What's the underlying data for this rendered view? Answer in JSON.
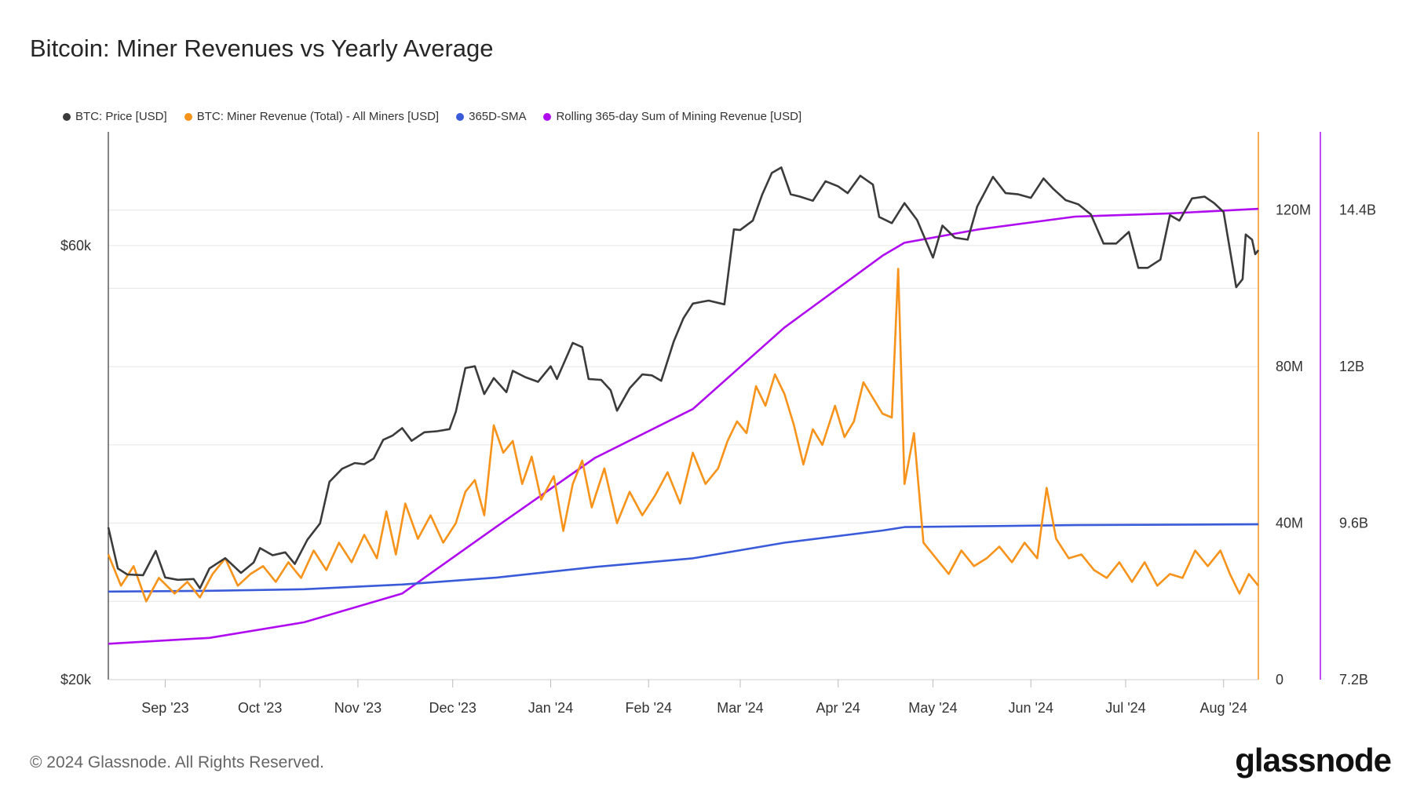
{
  "chart_data": {
    "type": "line",
    "title": "Bitcoin: Miner Revenues vs Yearly Average",
    "x_labels": [
      "Sep '23",
      "Oct '23",
      "Nov '23",
      "Dec '23",
      "Jan '24",
      "Feb '24",
      "Mar '24",
      "Apr '24",
      "May '24",
      "Jun '24",
      "Jul '24",
      "Aug '24"
    ],
    "x_label_dates": [
      "2023-09-01",
      "2023-10-01",
      "2023-11-01",
      "2023-12-01",
      "2024-01-01",
      "2024-02-01",
      "2024-03-01",
      "2024-04-01",
      "2024-05-01",
      "2024-06-01",
      "2024-07-01",
      "2024-08-01"
    ],
    "x_range": [
      "2023-08-14",
      "2024-08-12"
    ],
    "left_axis": {
      "ticks": [
        "$20k",
        "$60k"
      ],
      "tick_values": [
        20000,
        60000
      ],
      "range": [
        20000,
        80000
      ],
      "scale": "log"
    },
    "right_axis": {
      "ticks": [
        "0",
        "40M",
        "80M",
        "120M"
      ],
      "tick_values": [
        0,
        40000000,
        80000000,
        120000000
      ],
      "range": [
        0,
        140000000
      ]
    },
    "far_right_axis": {
      "ticks": [
        "7.2B",
        "9.6B",
        "12B",
        "14.4B"
      ],
      "tick_values": [
        7200000000.0,
        9600000000.0,
        12000000000.0,
        14400000000.0
      ],
      "range": [
        7200000000.0,
        15600000000.0
      ]
    },
    "legend_position": "top-left",
    "grid": true,
    "series": [
      {
        "name": "BTC: Price [USD]",
        "color": "#3b3b3b",
        "axis": "left",
        "points": [
          [
            "2023-08-14",
            29400
          ],
          [
            "2023-08-17",
            26500
          ],
          [
            "2023-08-20",
            26100
          ],
          [
            "2023-08-25",
            26050
          ],
          [
            "2023-08-29",
            27700
          ],
          [
            "2023-09-01",
            25900
          ],
          [
            "2023-09-05",
            25750
          ],
          [
            "2023-09-10",
            25800
          ],
          [
            "2023-09-12",
            25200
          ],
          [
            "2023-09-15",
            26500
          ],
          [
            "2023-09-20",
            27200
          ],
          [
            "2023-09-25",
            26200
          ],
          [
            "2023-09-29",
            26900
          ],
          [
            "2023-10-01",
            27900
          ],
          [
            "2023-10-05",
            27400
          ],
          [
            "2023-10-09",
            27600
          ],
          [
            "2023-10-12",
            26800
          ],
          [
            "2023-10-16",
            28500
          ],
          [
            "2023-10-20",
            29700
          ],
          [
            "2023-10-23",
            33000
          ],
          [
            "2023-10-27",
            34100
          ],
          [
            "2023-10-31",
            34600
          ],
          [
            "2023-11-03",
            34500
          ],
          [
            "2023-11-06",
            35000
          ],
          [
            "2023-11-09",
            36700
          ],
          [
            "2023-11-12",
            37100
          ],
          [
            "2023-11-15",
            37800
          ],
          [
            "2023-11-18",
            36600
          ],
          [
            "2023-11-22",
            37400
          ],
          [
            "2023-11-26",
            37500
          ],
          [
            "2023-11-30",
            37700
          ],
          [
            "2023-12-02",
            39400
          ],
          [
            "2023-12-05",
            44000
          ],
          [
            "2023-12-08",
            44200
          ],
          [
            "2023-12-11",
            41200
          ],
          [
            "2023-12-14",
            42900
          ],
          [
            "2023-12-18",
            41400
          ],
          [
            "2023-12-20",
            43700
          ],
          [
            "2023-12-24",
            43000
          ],
          [
            "2023-12-28",
            42500
          ],
          [
            "2024-01-01",
            44200
          ],
          [
            "2024-01-03",
            42800
          ],
          [
            "2024-01-08",
            46900
          ],
          [
            "2024-01-11",
            46400
          ],
          [
            "2024-01-13",
            42800
          ],
          [
            "2024-01-17",
            42700
          ],
          [
            "2024-01-20",
            41600
          ],
          [
            "2024-01-22",
            39500
          ],
          [
            "2024-01-26",
            41800
          ],
          [
            "2024-01-30",
            43300
          ],
          [
            "2024-02-02",
            43200
          ],
          [
            "2024-02-05",
            42600
          ],
          [
            "2024-02-09",
            47100
          ],
          [
            "2024-02-12",
            49900
          ],
          [
            "2024-02-15",
            51800
          ],
          [
            "2024-02-20",
            52200
          ],
          [
            "2024-02-25",
            51700
          ],
          [
            "2024-02-28",
            62500
          ],
          [
            "2024-03-01",
            62400
          ],
          [
            "2024-03-05",
            63900
          ],
          [
            "2024-03-08",
            68300
          ],
          [
            "2024-03-11",
            72100
          ],
          [
            "2024-03-14",
            73100
          ],
          [
            "2024-03-17",
            68300
          ],
          [
            "2024-03-20",
            67900
          ],
          [
            "2024-03-24",
            67200
          ],
          [
            "2024-03-28",
            70600
          ],
          [
            "2024-04-01",
            69700
          ],
          [
            "2024-04-04",
            68500
          ],
          [
            "2024-04-08",
            71600
          ],
          [
            "2024-04-12",
            70000
          ],
          [
            "2024-04-14",
            64500
          ],
          [
            "2024-04-18",
            63500
          ],
          [
            "2024-04-22",
            66800
          ],
          [
            "2024-04-26",
            64000
          ],
          [
            "2024-05-01",
            58200
          ],
          [
            "2024-05-04",
            63100
          ],
          [
            "2024-05-08",
            61200
          ],
          [
            "2024-05-12",
            60900
          ],
          [
            "2024-05-15",
            66200
          ],
          [
            "2024-05-20",
            71400
          ],
          [
            "2024-05-24",
            68500
          ],
          [
            "2024-05-28",
            68300
          ],
          [
            "2024-06-01",
            67700
          ],
          [
            "2024-06-05",
            71100
          ],
          [
            "2024-06-08",
            69300
          ],
          [
            "2024-06-12",
            67300
          ],
          [
            "2024-06-16",
            66600
          ],
          [
            "2024-06-20",
            64900
          ],
          [
            "2024-06-24",
            60300
          ],
          [
            "2024-06-28",
            60300
          ],
          [
            "2024-07-02",
            62100
          ],
          [
            "2024-07-05",
            56700
          ],
          [
            "2024-07-08",
            56700
          ],
          [
            "2024-07-12",
            57900
          ],
          [
            "2024-07-15",
            64800
          ],
          [
            "2024-07-18",
            63900
          ],
          [
            "2024-07-22",
            67600
          ],
          [
            "2024-07-26",
            67900
          ],
          [
            "2024-07-29",
            66800
          ],
          [
            "2024-08-01",
            65300
          ],
          [
            "2024-08-05",
            54000
          ],
          [
            "2024-08-07",
            55100
          ],
          [
            "2024-08-08",
            61700
          ],
          [
            "2024-08-10",
            60900
          ],
          [
            "2024-08-11",
            58700
          ],
          [
            "2024-08-12",
            59300
          ]
        ]
      },
      {
        "name": "BTC: Miner Revenue (Total) - All Miners [USD]",
        "color": "#f7931a",
        "axis": "right",
        "points": [
          [
            "2023-08-14",
            32000000
          ],
          [
            "2023-08-18",
            24000000
          ],
          [
            "2023-08-22",
            29000000
          ],
          [
            "2023-08-26",
            20000000
          ],
          [
            "2023-08-30",
            26000000
          ],
          [
            "2023-09-04",
            22000000
          ],
          [
            "2023-09-08",
            25000000
          ],
          [
            "2023-09-12",
            21000000
          ],
          [
            "2023-09-16",
            27000000
          ],
          [
            "2023-09-20",
            31000000
          ],
          [
            "2023-09-24",
            24000000
          ],
          [
            "2023-09-28",
            27000000
          ],
          [
            "2023-10-02",
            29000000
          ],
          [
            "2023-10-06",
            25000000
          ],
          [
            "2023-10-10",
            30000000
          ],
          [
            "2023-10-14",
            26000000
          ],
          [
            "2023-10-18",
            33000000
          ],
          [
            "2023-10-22",
            28000000
          ],
          [
            "2023-10-26",
            35000000
          ],
          [
            "2023-10-30",
            30000000
          ],
          [
            "2023-11-03",
            37000000
          ],
          [
            "2023-11-07",
            31000000
          ],
          [
            "2023-11-10",
            43000000
          ],
          [
            "2023-11-13",
            32000000
          ],
          [
            "2023-11-16",
            45000000
          ],
          [
            "2023-11-20",
            36000000
          ],
          [
            "2023-11-24",
            42000000
          ],
          [
            "2023-11-28",
            35000000
          ],
          [
            "2023-12-02",
            40000000
          ],
          [
            "2023-12-05",
            48000000
          ],
          [
            "2023-12-08",
            51000000
          ],
          [
            "2023-12-11",
            42000000
          ],
          [
            "2023-12-14",
            65000000
          ],
          [
            "2023-12-17",
            58000000
          ],
          [
            "2023-12-20",
            61000000
          ],
          [
            "2023-12-23",
            50000000
          ],
          [
            "2023-12-26",
            57000000
          ],
          [
            "2023-12-29",
            46000000
          ],
          [
            "2024-01-02",
            52000000
          ],
          [
            "2024-01-05",
            38000000
          ],
          [
            "2024-01-08",
            50000000
          ],
          [
            "2024-01-11",
            56000000
          ],
          [
            "2024-01-14",
            44000000
          ],
          [
            "2024-01-18",
            54000000
          ],
          [
            "2024-01-22",
            40000000
          ],
          [
            "2024-01-26",
            48000000
          ],
          [
            "2024-01-30",
            42000000
          ],
          [
            "2024-02-03",
            47000000
          ],
          [
            "2024-02-07",
            53000000
          ],
          [
            "2024-02-11",
            45000000
          ],
          [
            "2024-02-15",
            58000000
          ],
          [
            "2024-02-19",
            50000000
          ],
          [
            "2024-02-23",
            54000000
          ],
          [
            "2024-02-26",
            61000000
          ],
          [
            "2024-02-29",
            66000000
          ],
          [
            "2024-03-03",
            63000000
          ],
          [
            "2024-03-06",
            75000000
          ],
          [
            "2024-03-09",
            70000000
          ],
          [
            "2024-03-12",
            78000000
          ],
          [
            "2024-03-15",
            73000000
          ],
          [
            "2024-03-18",
            65000000
          ],
          [
            "2024-03-21",
            55000000
          ],
          [
            "2024-03-24",
            64000000
          ],
          [
            "2024-03-27",
            60000000
          ],
          [
            "2024-03-31",
            70000000
          ],
          [
            "2024-04-03",
            62000000
          ],
          [
            "2024-04-06",
            66000000
          ],
          [
            "2024-04-09",
            76000000
          ],
          [
            "2024-04-12",
            72000000
          ],
          [
            "2024-04-15",
            68000000
          ],
          [
            "2024-04-18",
            67000000
          ],
          [
            "2024-04-20",
            105000000
          ],
          [
            "2024-04-22",
            50000000
          ],
          [
            "2024-04-25",
            63000000
          ],
          [
            "2024-04-28",
            35000000
          ],
          [
            "2024-05-02",
            31000000
          ],
          [
            "2024-05-06",
            27000000
          ],
          [
            "2024-05-10",
            33000000
          ],
          [
            "2024-05-14",
            29000000
          ],
          [
            "2024-05-18",
            31000000
          ],
          [
            "2024-05-22",
            34000000
          ],
          [
            "2024-05-26",
            30000000
          ],
          [
            "2024-05-30",
            35000000
          ],
          [
            "2024-06-03",
            31000000
          ],
          [
            "2024-06-06",
            49000000
          ],
          [
            "2024-06-09",
            36000000
          ],
          [
            "2024-06-13",
            31000000
          ],
          [
            "2024-06-17",
            32000000
          ],
          [
            "2024-06-21",
            28000000
          ],
          [
            "2024-06-25",
            26000000
          ],
          [
            "2024-06-29",
            30000000
          ],
          [
            "2024-07-03",
            25000000
          ],
          [
            "2024-07-07",
            30000000
          ],
          [
            "2024-07-11",
            24000000
          ],
          [
            "2024-07-15",
            27000000
          ],
          [
            "2024-07-19",
            26000000
          ],
          [
            "2024-07-23",
            33000000
          ],
          [
            "2024-07-27",
            29000000
          ],
          [
            "2024-07-31",
            33000000
          ],
          [
            "2024-08-03",
            27000000
          ],
          [
            "2024-08-06",
            22000000
          ],
          [
            "2024-08-09",
            27000000
          ],
          [
            "2024-08-12",
            24000000
          ]
        ]
      },
      {
        "name": "365D-SMA",
        "color": "#3a5bd9",
        "axis": "right",
        "points": [
          [
            "2023-08-14",
            22500000
          ],
          [
            "2023-09-15",
            22700000
          ],
          [
            "2023-10-15",
            23100000
          ],
          [
            "2023-11-15",
            24300000
          ],
          [
            "2023-12-15",
            26100000
          ],
          [
            "2024-01-15",
            28800000
          ],
          [
            "2024-02-15",
            31000000
          ],
          [
            "2024-03-15",
            35000000
          ],
          [
            "2024-04-15",
            38100000
          ],
          [
            "2024-04-22",
            39000000
          ],
          [
            "2024-05-15",
            39200000
          ],
          [
            "2024-06-15",
            39500000
          ],
          [
            "2024-07-15",
            39600000
          ],
          [
            "2024-08-12",
            39700000
          ]
        ]
      },
      {
        "name": "Rolling 365-day Sum of Mining Revenue [USD]",
        "color": "#b00cf0",
        "axis": "far-right",
        "points": [
          [
            "2023-08-14",
            7750000000.0
          ],
          [
            "2023-09-15",
            7840000000.0
          ],
          [
            "2023-10-15",
            8080000000.0
          ],
          [
            "2023-11-15",
            8520000000.0
          ],
          [
            "2023-12-15",
            9550000000.0
          ],
          [
            "2024-01-15",
            10600000000.0
          ],
          [
            "2024-02-15",
            11350000000.0
          ],
          [
            "2024-03-15",
            12600000000.0
          ],
          [
            "2024-04-15",
            13700000000.0
          ],
          [
            "2024-04-22",
            13900000000.0
          ],
          [
            "2024-05-15",
            14100000000.0
          ],
          [
            "2024-06-15",
            14300000000.0
          ],
          [
            "2024-07-15",
            14350000000.0
          ],
          [
            "2024-08-12",
            14420000000.0
          ]
        ]
      }
    ]
  },
  "footer": {
    "copyright": "© 2024 Glassnode. All Rights Reserved.",
    "brand": "glassnode"
  },
  "colors": {
    "grid": "#e6e6e6",
    "axis": "#333333"
  }
}
